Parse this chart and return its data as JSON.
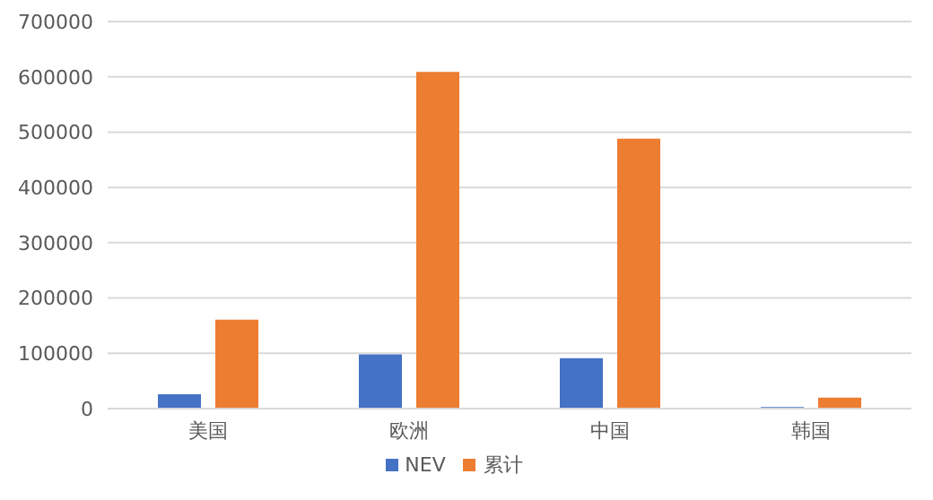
{
  "chart_data": {
    "type": "bar",
    "categories": [
      "美国",
      "欧洲",
      "中国",
      "韩国"
    ],
    "series": [
      {
        "name": "NEV",
        "color": "#4472c4",
        "values": [
          26000,
          98000,
          91000,
          3000
        ]
      },
      {
        "name": "累计",
        "color": "#ed7d31",
        "values": [
          161000,
          609000,
          488000,
          20000
        ]
      }
    ],
    "ylim": [
      0,
      700000
    ],
    "yticks": [
      0,
      100000,
      200000,
      300000,
      400000,
      500000,
      600000,
      700000
    ],
    "grid": "y",
    "legend": "bottom"
  }
}
